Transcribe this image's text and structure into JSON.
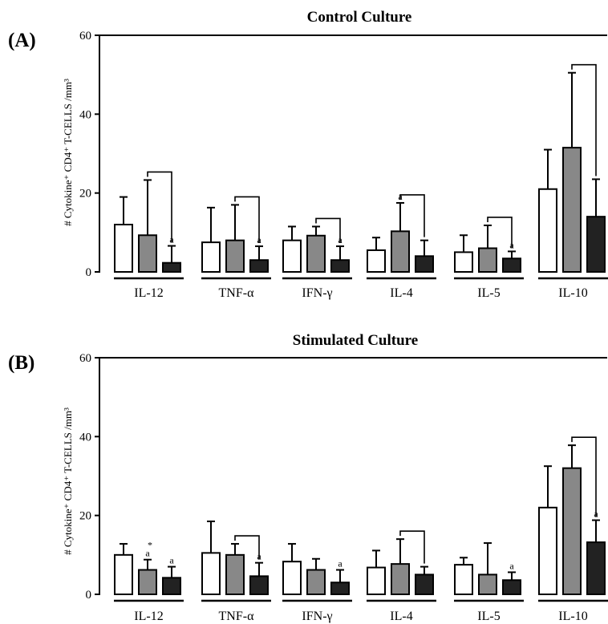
{
  "chart_data": [
    {
      "type": "bar",
      "panel_label": "(A)",
      "title": "Control Culture",
      "ylabel": "# Cytokine⁺ CD4⁺ T-CELLS /mm³",
      "ylim": [
        0,
        60
      ],
      "yticks": [
        "0",
        "20",
        "40",
        "60"
      ],
      "categories": [
        "IL-12",
        "TNF-α",
        "IFN-γ",
        "IL-4",
        "IL-5",
        "IL-10"
      ],
      "series": [
        {
          "color": "#ffffff",
          "values": [
            12,
            7.5,
            8,
            5.5,
            5,
            21
          ],
          "errors": [
            7,
            8.8,
            3.5,
            3.2,
            4.3,
            10
          ]
        },
        {
          "color": "#888888",
          "values": [
            9.3,
            8,
            9.2,
            10.3,
            6,
            31.5
          ],
          "errors": [
            14,
            9,
            2.3,
            7.2,
            5.8,
            19
          ]
        },
        {
          "color": "#222222",
          "values": [
            2.3,
            3,
            3,
            4,
            3.4,
            14
          ],
          "errors": [
            4.3,
            3.5,
            3.5,
            4,
            1.8,
            9.5
          ]
        }
      ],
      "brackets": [
        true,
        true,
        true,
        true,
        true,
        true
      ],
      "annotations": [
        {
          "category": 0,
          "series": 2,
          "text": "a"
        },
        {
          "category": 1,
          "series": 2,
          "text": "a"
        },
        {
          "category": 2,
          "series": 2,
          "text": "a"
        },
        {
          "category": 3,
          "series": 1,
          "text": "a"
        },
        {
          "category": 4,
          "series": 2,
          "text": "a"
        }
      ],
      "grid": false,
      "legend": "none"
    },
    {
      "type": "bar",
      "panel_label": "(B)",
      "title": "Stimulated Culture",
      "ylabel": "# Cytokine⁺ CD4⁺ T-CELLS /mm³",
      "ylim": [
        0,
        60
      ],
      "yticks": [
        "0",
        "20",
        "40",
        "60"
      ],
      "categories": [
        "IL-12",
        "TNF-α",
        "IFN-γ",
        "IL-4",
        "IL-5",
        "IL-10"
      ],
      "series": [
        {
          "color": "#ffffff",
          "values": [
            10,
            10.5,
            8.3,
            6.8,
            7.5,
            22
          ],
          "errors": [
            2.8,
            8,
            4.5,
            4.3,
            1.8,
            10.5
          ]
        },
        {
          "color": "#888888",
          "values": [
            6.2,
            10,
            6.2,
            7.7,
            5,
            32
          ],
          "errors": [
            2.6,
            2.8,
            2.8,
            6.3,
            8,
            5.8
          ]
        },
        {
          "color": "#222222",
          "values": [
            4.2,
            4.6,
            3,
            5,
            3.6,
            13.2
          ],
          "errors": [
            2.8,
            3.4,
            3.2,
            2,
            2,
            5.6
          ]
        }
      ],
      "brackets": [
        false,
        true,
        false,
        true,
        false,
        true
      ],
      "annotations": [
        {
          "category": 0,
          "series": 1,
          "text": "a",
          "extra": "*"
        },
        {
          "category": 0,
          "series": 2,
          "text": "a"
        },
        {
          "category": 1,
          "series": 2,
          "text": "a"
        },
        {
          "category": 2,
          "series": 2,
          "text": "a"
        },
        {
          "category": 4,
          "series": 2,
          "text": "a"
        },
        {
          "category": 5,
          "series": 2,
          "text": "a"
        }
      ],
      "grid": false,
      "legend": "none"
    }
  ]
}
